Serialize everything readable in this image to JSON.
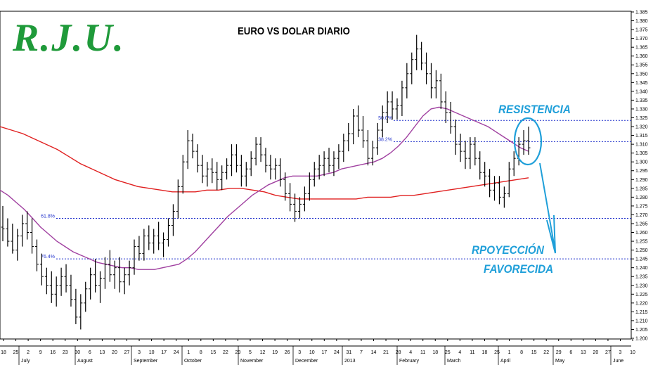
{
  "logo_text": "R.J.U.",
  "colors": {
    "logo": "#1f9a3a",
    "price_bars": "#000000",
    "ma_short": "#a040a0",
    "ma_long": "#e02020",
    "fib_lines": "#2233cc",
    "annotations": "#1f9fd9"
  },
  "annotations": {
    "resistance": "RESISTENCIA",
    "projection_line1": "RPOYECCIÓN",
    "projection_line2": "FAVORECIDA"
  },
  "chart_data": {
    "type": "ohlc-bar",
    "title": "EURO VS DOLAR DIARIO",
    "ylim": [
      1.2,
      1.385
    ],
    "y_ticks": [
      "1.385",
      "1.380",
      "1.375",
      "1.370",
      "1.365",
      "1.360",
      "1.355",
      "1.350",
      "1.345",
      "1.340",
      "1.335",
      "1.330",
      "1.325",
      "1.320",
      "1.315",
      "1.310",
      "1.305",
      "1.300",
      "1.295",
      "1.290",
      "1.285",
      "1.280",
      "1.275",
      "1.270",
      "1.265",
      "1.260",
      "1.255",
      "1.250",
      "1.245",
      "1.240",
      "1.235",
      "1.230",
      "1.225",
      "1.220",
      "1.215",
      "1.210",
      "1.205",
      "1.200"
    ],
    "x_day_labels": [
      "18",
      "25",
      "2",
      "9",
      "16",
      "23",
      "30",
      "6",
      "13",
      "20",
      "27",
      "3",
      "10",
      "17",
      "24",
      "1",
      "8",
      "15",
      "22",
      "29",
      "5",
      "12",
      "19",
      "26",
      "3",
      "10",
      "17",
      "24",
      "31",
      "7",
      "14",
      "21",
      "28",
      "4",
      "11",
      "18",
      "25",
      "4",
      "11",
      "18",
      "25",
      "1",
      "8",
      "15",
      "22",
      "29",
      "6",
      "13",
      "20",
      "27",
      "3",
      "10"
    ],
    "x_month_labels": [
      "July",
      "August",
      "September",
      "October",
      "November",
      "December",
      "2013",
      "February",
      "March",
      "April",
      "May",
      "June"
    ],
    "fib_levels": [
      {
        "label": "50.0%",
        "value": 1.3235
      },
      {
        "label": "38.2%",
        "value": 1.3115
      },
      {
        "label": "61.8%",
        "value": 1.268
      },
      {
        "label": "76.4%",
        "value": 1.245
      }
    ],
    "bars": [
      [
        1.263,
        1.275,
        1.255,
        1.262
      ],
      [
        1.262,
        1.268,
        1.252,
        1.255
      ],
      [
        1.255,
        1.265,
        1.248,
        1.25
      ],
      [
        1.25,
        1.262,
        1.244,
        1.258
      ],
      [
        1.258,
        1.27,
        1.252,
        1.265
      ],
      [
        1.265,
        1.272,
        1.256,
        1.26
      ],
      [
        1.26,
        1.268,
        1.248,
        1.252
      ],
      [
        1.252,
        1.256,
        1.238,
        1.242
      ],
      [
        1.242,
        1.248,
        1.23,
        1.235
      ],
      [
        1.235,
        1.24,
        1.225,
        1.23
      ],
      [
        1.23,
        1.238,
        1.22,
        1.225
      ],
      [
        1.225,
        1.235,
        1.218,
        1.23
      ],
      [
        1.23,
        1.24,
        1.224,
        1.235
      ],
      [
        1.235,
        1.242,
        1.226,
        1.23
      ],
      [
        1.23,
        1.236,
        1.218,
        1.222
      ],
      [
        1.222,
        1.228,
        1.208,
        1.212
      ],
      [
        1.212,
        1.225,
        1.205,
        1.22
      ],
      [
        1.22,
        1.232,
        1.215,
        1.228
      ],
      [
        1.228,
        1.24,
        1.222,
        1.236
      ],
      [
        1.236,
        1.245,
        1.226,
        1.23
      ],
      [
        1.23,
        1.238,
        1.22,
        1.234
      ],
      [
        1.234,
        1.246,
        1.228,
        1.242
      ],
      [
        1.242,
        1.25,
        1.232,
        1.236
      ],
      [
        1.236,
        1.244,
        1.228,
        1.24
      ],
      [
        1.24,
        1.246,
        1.226,
        1.232
      ],
      [
        1.232,
        1.24,
        1.225,
        1.236
      ],
      [
        1.236,
        1.244,
        1.23,
        1.24
      ],
      [
        1.24,
        1.256,
        1.236,
        1.252
      ],
      [
        1.252,
        1.258,
        1.244,
        1.248
      ],
      [
        1.248,
        1.262,
        1.244,
        1.258
      ],
      [
        1.258,
        1.264,
        1.25,
        1.254
      ],
      [
        1.254,
        1.262,
        1.248,
        1.258
      ],
      [
        1.258,
        1.266,
        1.25,
        1.254
      ],
      [
        1.254,
        1.26,
        1.246,
        1.256
      ],
      [
        1.256,
        1.268,
        1.252,
        1.264
      ],
      [
        1.264,
        1.276,
        1.258,
        1.272
      ],
      [
        1.272,
        1.29,
        1.268,
        1.286
      ],
      [
        1.286,
        1.304,
        1.282,
        1.3
      ],
      [
        1.3,
        1.318,
        1.296,
        1.312
      ],
      [
        1.312,
        1.316,
        1.302,
        1.306
      ],
      [
        1.306,
        1.31,
        1.294,
        1.298
      ],
      [
        1.298,
        1.304,
        1.288,
        1.292
      ],
      [
        1.292,
        1.3,
        1.286,
        1.296
      ],
      [
        1.296,
        1.302,
        1.288,
        1.294
      ],
      [
        1.294,
        1.3,
        1.284,
        1.29
      ],
      [
        1.29,
        1.298,
        1.284,
        1.294
      ],
      [
        1.294,
        1.302,
        1.29,
        1.298
      ],
      [
        1.298,
        1.31,
        1.292,
        1.304
      ],
      [
        1.304,
        1.31,
        1.294,
        1.298
      ],
      [
        1.298,
        1.304,
        1.286,
        1.292
      ],
      [
        1.292,
        1.3,
        1.286,
        1.296
      ],
      [
        1.296,
        1.306,
        1.292,
        1.302
      ],
      [
        1.302,
        1.314,
        1.298,
        1.31
      ],
      [
        1.31,
        1.314,
        1.3,
        1.304
      ],
      [
        1.304,
        1.308,
        1.294,
        1.298
      ],
      [
        1.298,
        1.304,
        1.29,
        1.296
      ],
      [
        1.296,
        1.302,
        1.29,
        1.298
      ],
      [
        1.298,
        1.302,
        1.286,
        1.29
      ],
      [
        1.29,
        1.294,
        1.278,
        1.282
      ],
      [
        1.282,
        1.288,
        1.272,
        1.276
      ],
      [
        1.276,
        1.282,
        1.266,
        1.272
      ],
      [
        1.272,
        1.28,
        1.268,
        1.276
      ],
      [
        1.276,
        1.286,
        1.272,
        1.282
      ],
      [
        1.282,
        1.294,
        1.278,
        1.29
      ],
      [
        1.29,
        1.3,
        1.286,
        1.296
      ],
      [
        1.296,
        1.304,
        1.29,
        1.298
      ],
      [
        1.298,
        1.306,
        1.292,
        1.302
      ],
      [
        1.302,
        1.308,
        1.294,
        1.298
      ],
      [
        1.298,
        1.306,
        1.292,
        1.302
      ],
      [
        1.302,
        1.31,
        1.296,
        1.306
      ],
      [
        1.306,
        1.316,
        1.3,
        1.312
      ],
      [
        1.312,
        1.322,
        1.306,
        1.316
      ],
      [
        1.316,
        1.33,
        1.31,
        1.326
      ],
      [
        1.326,
        1.332,
        1.314,
        1.318
      ],
      [
        1.318,
        1.326,
        1.308,
        1.312
      ],
      [
        1.312,
        1.318,
        1.298,
        1.302
      ],
      [
        1.302,
        1.312,
        1.298,
        1.308
      ],
      [
        1.308,
        1.322,
        1.304,
        1.318
      ],
      [
        1.318,
        1.332,
        1.314,
        1.328
      ],
      [
        1.328,
        1.34,
        1.322,
        1.334
      ],
      [
        1.334,
        1.34,
        1.324,
        1.33
      ],
      [
        1.33,
        1.336,
        1.324,
        1.332
      ],
      [
        1.332,
        1.346,
        1.326,
        1.342
      ],
      [
        1.342,
        1.356,
        1.336,
        1.35
      ],
      [
        1.35,
        1.362,
        1.344,
        1.358
      ],
      [
        1.358,
        1.372,
        1.352,
        1.364
      ],
      [
        1.364,
        1.368,
        1.352,
        1.356
      ],
      [
        1.356,
        1.362,
        1.344,
        1.35
      ],
      [
        1.35,
        1.356,
        1.336,
        1.342
      ],
      [
        1.342,
        1.352,
        1.336,
        1.346
      ],
      [
        1.346,
        1.35,
        1.33,
        1.334
      ],
      [
        1.334,
        1.34,
        1.322,
        1.328
      ],
      [
        1.328,
        1.334,
        1.316,
        1.32
      ],
      [
        1.32,
        1.324,
        1.304,
        1.31
      ],
      [
        1.31,
        1.316,
        1.3,
        1.306
      ],
      [
        1.306,
        1.312,
        1.296,
        1.302
      ],
      [
        1.302,
        1.314,
        1.296,
        1.31
      ],
      [
        1.31,
        1.314,
        1.298,
        1.302
      ],
      [
        1.302,
        1.306,
        1.29,
        1.294
      ],
      [
        1.294,
        1.3,
        1.286,
        1.292
      ],
      [
        1.292,
        1.296,
        1.28,
        1.284
      ],
      [
        1.284,
        1.292,
        1.278,
        1.288
      ],
      [
        1.288,
        1.292,
        1.276,
        1.28
      ],
      [
        1.28,
        1.286,
        1.274,
        1.282
      ],
      [
        1.282,
        1.3,
        1.28,
        1.296
      ],
      [
        1.296,
        1.306,
        1.292,
        1.302
      ],
      [
        1.302,
        1.314,
        1.298,
        1.31
      ],
      [
        1.31,
        1.318,
        1.304,
        1.312
      ],
      [
        1.312,
        1.32,
        1.304,
        1.308
      ]
    ],
    "ma_short": {
      "start": 1.284,
      "points": [
        1.284,
        1.281,
        1.277,
        1.273,
        1.268,
        1.263,
        1.259,
        1.255,
        1.252,
        1.249,
        1.247,
        1.245,
        1.243,
        1.242,
        1.241,
        1.24,
        1.24,
        1.239,
        1.239,
        1.239,
        1.24,
        1.241,
        1.242,
        1.245,
        1.249,
        1.254,
        1.259,
        1.264,
        1.269,
        1.273,
        1.277,
        1.281,
        1.284,
        1.287,
        1.289,
        1.291,
        1.292,
        1.292,
        1.292,
        1.292,
        1.293,
        1.294,
        1.296,
        1.297,
        1.298,
        1.299,
        1.3,
        1.302,
        1.305,
        1.309,
        1.314,
        1.32,
        1.326,
        1.33,
        1.331,
        1.33,
        1.328,
        1.326,
        1.324,
        1.322,
        1.32,
        1.317,
        1.314,
        1.311,
        1.308,
        1.306
      ]
    },
    "ma_long": {
      "points": [
        1.32,
        1.318,
        1.316,
        1.313,
        1.31,
        1.307,
        1.303,
        1.299,
        1.296,
        1.293,
        1.29,
        1.288,
        1.286,
        1.285,
        1.284,
        1.283,
        1.283,
        1.283,
        1.284,
        1.284,
        1.285,
        1.285,
        1.284,
        1.283,
        1.281,
        1.28,
        1.279,
        1.279,
        1.279,
        1.279,
        1.279,
        1.279,
        1.28,
        1.28,
        1.28,
        1.281,
        1.281,
        1.282,
        1.283,
        1.284,
        1.285,
        1.286,
        1.287,
        1.288,
        1.289,
        1.29,
        1.291
      ]
    }
  }
}
